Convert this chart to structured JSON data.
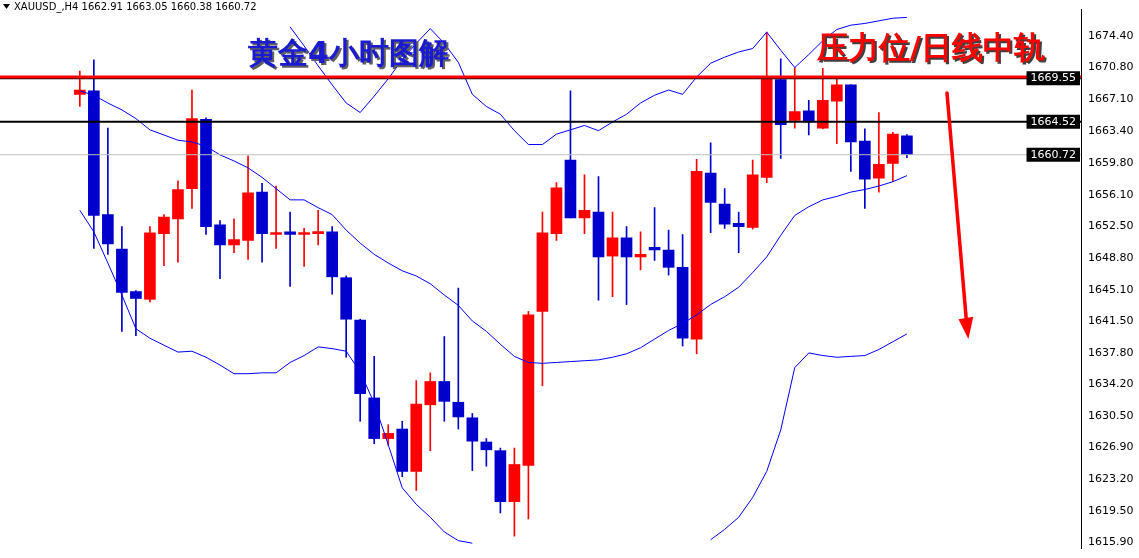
{
  "chart_data": {
    "type": "candlestick",
    "title": "黄金4小时图解",
    "subtitle": "XAUUSD_,H4  1662.91 1663.05 1660.38 1660.72",
    "categories": [
      null,
      null,
      null,
      null,
      null,
      null,
      null,
      null,
      null,
      null,
      null,
      null,
      null,
      null,
      null,
      null,
      null,
      null,
      null,
      null,
      null,
      null,
      null,
      null,
      null,
      null,
      null,
      null,
      null,
      null,
      null,
      null,
      null,
      null,
      null,
      null,
      null,
      null,
      null,
      null,
      null,
      null,
      null,
      null,
      null,
      null,
      null,
      null,
      null,
      null,
      null,
      null,
      null,
      null,
      null,
      null,
      null,
      null,
      null,
      null
    ],
    "ohlc": [
      [
        1667.7,
        1670.4,
        1666.3,
        1668.2
      ],
      [
        1668.1,
        1671.7,
        1649.9,
        1653.7
      ],
      [
        1653.8,
        1663.8,
        1649.2,
        1650.4
      ],
      [
        1649.8,
        1652.4,
        1640.3,
        1644.8
      ],
      [
        1644.9,
        1645.0,
        1639.8,
        1644.1
      ],
      [
        1644.0,
        1652.4,
        1643.7,
        1651.7
      ],
      [
        1651.6,
        1653.8,
        1647.9,
        1653.5
      ],
      [
        1653.3,
        1657.7,
        1648.3,
        1656.7
      ],
      [
        1656.8,
        1668.2,
        1654.5,
        1664.9
      ],
      [
        1664.8,
        1665.0,
        1651.5,
        1652.4
      ],
      [
        1652.6,
        1653.1,
        1646.4,
        1650.3
      ],
      [
        1650.3,
        1653.3,
        1649.4,
        1650.9
      ],
      [
        1650.8,
        1660.6,
        1648.6,
        1656.3
      ],
      [
        1656.4,
        1657.4,
        1648.3,
        1651.6
      ],
      [
        1651.5,
        1657.1,
        1649.9,
        1651.7
      ],
      [
        1651.8,
        1654.1,
        1645.5,
        1651.5
      ],
      [
        1651.5,
        1652.2,
        1647.8,
        1651.7
      ],
      [
        1651.6,
        1654.3,
        1650.3,
        1651.8
      ],
      [
        1651.8,
        1652.4,
        1644.6,
        1646.6
      ],
      [
        1646.5,
        1646.7,
        1637.3,
        1641.7
      ],
      [
        1641.6,
        1641.7,
        1629.9,
        1633.1
      ],
      [
        1632.6,
        1637.4,
        1627.3,
        1627.9
      ],
      [
        1627.9,
        1629.5,
        1627.1,
        1628.5
      ],
      [
        1629.0,
        1629.9,
        1623.5,
        1624.1
      ],
      [
        1624.1,
        1634.6,
        1621.9,
        1631.9
      ],
      [
        1631.8,
        1635.5,
        1626.5,
        1634.5
      ],
      [
        1634.5,
        1639.7,
        1629.9,
        1632.2
      ],
      [
        1632.1,
        1645.3,
        1629.0,
        1630.4
      ],
      [
        1630.3,
        1630.8,
        1624.2,
        1627.6
      ],
      [
        1627.5,
        1627.9,
        1624.7,
        1626.6
      ],
      [
        1626.5,
        1626.8,
        1619.3,
        1620.6
      ],
      [
        1620.6,
        1626.8,
        1616.6,
        1624.9
      ],
      [
        1624.8,
        1642.6,
        1618.6,
        1642.2
      ],
      [
        1642.6,
        1654.1,
        1634.0,
        1651.7
      ],
      [
        1651.6,
        1657.5,
        1650.8,
        1656.9
      ],
      [
        1660.1,
        1668.1,
        1653.4,
        1653.4
      ],
      [
        1653.4,
        1658.4,
        1651.6,
        1654.3
      ],
      [
        1654.1,
        1658.2,
        1643.9,
        1648.9
      ],
      [
        1649.0,
        1654.1,
        1644.3,
        1651.1
      ],
      [
        1651.1,
        1652.4,
        1643.4,
        1648.9
      ],
      [
        1648.9,
        1651.8,
        1647.4,
        1649.2
      ],
      [
        1650.0,
        1654.6,
        1648.5,
        1649.7
      ],
      [
        1649.7,
        1652.0,
        1646.8,
        1647.7
      ],
      [
        1647.7,
        1651.5,
        1638.6,
        1639.5
      ],
      [
        1639.4,
        1660.2,
        1637.7,
        1658.8
      ],
      [
        1658.6,
        1662.1,
        1651.7,
        1655.2
      ],
      [
        1655.0,
        1656.8,
        1652.2,
        1652.7
      ],
      [
        1652.8,
        1654.1,
        1649.4,
        1652.4
      ],
      [
        1652.3,
        1660.1,
        1652.1,
        1658.4
      ],
      [
        1658.1,
        1674.9,
        1657.5,
        1669.5
      ],
      [
        1669.4,
        1671.8,
        1660.3,
        1664.2
      ],
      [
        1664.7,
        1670.8,
        1663.8,
        1665.7
      ],
      [
        1665.8,
        1667.0,
        1663.0,
        1664.5
      ],
      [
        1663.8,
        1670.7,
        1663.7,
        1667.0
      ],
      [
        1666.9,
        1669.5,
        1662.0,
        1668.8
      ],
      [
        1668.8,
        1668.8,
        1658.8,
        1662.2
      ],
      [
        1662.3,
        1663.7,
        1654.5,
        1657.9
      ],
      [
        1658.0,
        1665.6,
        1656.4,
        1659.6
      ],
      [
        1659.7,
        1663.3,
        1657.6,
        1663.1
      ],
      [
        1662.91,
        1663.05,
        1660.38,
        1660.72
      ]
    ],
    "colors": [
      "#ff0000",
      "#0000cc",
      "#0000cc",
      "#0000cc",
      "#0000cc",
      "#ff0000",
      "#ff0000",
      "#ff0000",
      "#ff0000",
      "#0000cc",
      "#0000cc",
      "#ff0000",
      "#ff0000",
      "#0000cc",
      "#ff0000",
      "#0000cc",
      "#ff0000",
      "#ff0000",
      "#0000cc",
      "#0000cc",
      "#0000cc",
      "#0000cc",
      "#ff0000",
      "#0000cc",
      "#ff0000",
      "#ff0000",
      "#0000cc",
      "#0000cc",
      "#0000cc",
      "#0000cc",
      "#0000cc",
      "#ff0000",
      "#ff0000",
      "#ff0000",
      "#ff0000",
      "#0000cc",
      "#ff0000",
      "#0000cc",
      "#ff0000",
      "#0000cc",
      "#ff0000",
      "#0000cc",
      "#0000cc",
      "#0000cc",
      "#ff0000",
      "#0000cc",
      "#0000cc",
      "#0000cc",
      "#ff0000",
      "#ff0000",
      "#0000cc",
      "#ff0000",
      "#0000cc",
      "#ff0000",
      "#ff0000",
      "#0000cc",
      "#0000cc",
      "#ff0000",
      "#ff0000",
      "#0000cc"
    ],
    "series": [
      {
        "type": "line",
        "color": "#0000ff",
        "values": [
          null,
          null,
          null,
          null,
          null,
          null,
          null,
          null,
          null,
          null,
          null,
          null,
          null,
          null,
          null,
          1675.5,
          1673.3,
          1671.0,
          1668.8,
          1666.7,
          1665.6,
          1667.5,
          1669.5,
          1671.7,
          1673.6,
          1675.3,
          1673.6,
          1671.4,
          1667.7,
          1666.3,
          1665.4,
          1663.5,
          1661.9,
          1661.9,
          1663.1,
          1663.6,
          1664.1,
          1663.5,
          1664.5,
          1665.4,
          1666.7,
          1667.6,
          1668.2,
          1667.7,
          1669.7,
          1671.3,
          1672.0,
          1672.6,
          1673.0,
          1674.9,
          1672.8,
          1670.8,
          1672.3,
          1673.9,
          1675.2,
          1675.7,
          1675.9,
          1676.2,
          1676.5,
          1676.6
        ]
      },
      {
        "type": "line",
        "color": "#0000ff",
        "values": [
          1668.1,
          1667.6,
          1666.7,
          1665.9,
          1664.9,
          1663.6,
          1663.0,
          1662.4,
          1662.2,
          1661.7,
          1660.7,
          1660.0,
          1659.2,
          1658.1,
          1656.8,
          1655.5,
          1655.5,
          1654.6,
          1653.8,
          1652.0,
          1650.5,
          1649.2,
          1648.2,
          1647.3,
          1646.7,
          1645.8,
          1644.5,
          1643.3,
          1641.5,
          1640.3,
          1638.8,
          1637.4,
          1636.7,
          1636.6,
          1636.7,
          1636.8,
          1636.9,
          1637.0,
          1637.3,
          1637.7,
          1638.4,
          1639.4,
          1640.4,
          1641.2,
          1642.2,
          1643.4,
          1644.3,
          1645.4,
          1647.1,
          1648.9,
          1651.4,
          1653.7,
          1654.7,
          1655.5,
          1655.9,
          1656.4,
          1656.7,
          1657.1,
          1657.6,
          1658.3
        ]
      },
      {
        "type": "line",
        "color": "#0000ff",
        "values": [
          1654.3,
          1651.8,
          1648.2,
          1644.5,
          1640.6,
          1639.5,
          1638.7,
          1637.9,
          1638.0,
          1637.3,
          1636.4,
          1635.4,
          1635.4,
          1635.5,
          1635.5,
          1636.7,
          1637.5,
          1638.5,
          1638.3,
          1638.0,
          1635.6,
          1632.0,
          1627.2,
          1622.2,
          1620.3,
          1618.8,
          1617.1,
          1616.1,
          1615.8,
          null,
          null,
          null,
          null,
          null,
          null,
          null,
          null,
          null,
          null,
          null,
          null,
          null,
          null,
          null,
          null,
          1616.2,
          1617.4,
          1618.8,
          1621.1,
          1624.1,
          1628.9,
          1636.1,
          1637.8,
          1637.5,
          1637.3,
          1637.4,
          1637.5,
          1638.2,
          1639.1,
          1640.0
        ]
      }
    ],
    "ref_lines": [
      {
        "axis": "y",
        "value": 1669.55,
        "label": "1669.55",
        "color": "#000000"
      },
      {
        "axis": "y",
        "value": 1664.52,
        "label": "1664.52",
        "color": "#000000"
      },
      {
        "axis": "y",
        "value": 1660.72,
        "label": "1660.72",
        "color": "#c0c0c0"
      },
      {
        "axis": "y",
        "value": 1669.7,
        "color": "#ff0000"
      }
    ],
    "annotations": [
      {
        "text": "压力位/日线中轨",
        "y": 1669.7
      }
    ],
    "ylim": [
      1615.2,
      1677.5
    ],
    "yticks": [
      {
        "value": 1674.4,
        "label": "1674.40"
      },
      {
        "value": 1670.8,
        "label": "1670.80"
      },
      {
        "value": 1667.1,
        "label": "1667.10"
      },
      {
        "value": 1663.4,
        "label": "1663.40"
      },
      {
        "value": 1659.8,
        "label": "1659.80"
      },
      {
        "value": 1656.1,
        "label": "1656.10"
      },
      {
        "value": 1652.5,
        "label": "1652.50"
      },
      {
        "value": 1648.8,
        "label": "1648.80"
      },
      {
        "value": 1645.1,
        "label": "1645.10"
      },
      {
        "value": 1641.5,
        "label": "1641.50"
      },
      {
        "value": 1637.8,
        "label": "1637.80"
      },
      {
        "value": 1634.2,
        "label": "1634.20"
      },
      {
        "value": 1630.5,
        "label": "1630.50"
      },
      {
        "value": 1626.9,
        "label": "1626.90"
      },
      {
        "value": 1623.2,
        "label": "1623.20"
      },
      {
        "value": 1619.5,
        "label": "1619.50"
      },
      {
        "value": 1615.9,
        "label": "1615.90"
      }
    ],
    "tick_labels": "y",
    "grid": false,
    "legend": false
  }
}
